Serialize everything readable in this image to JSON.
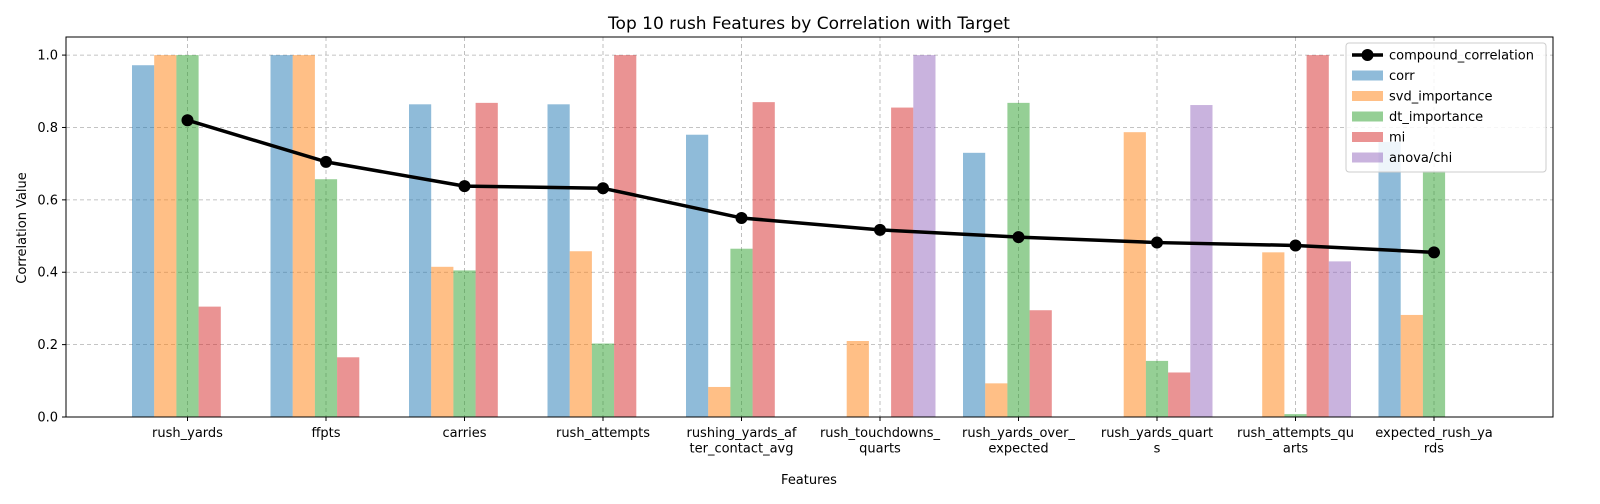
{
  "chart_data": {
    "type": "bar",
    "title": "Top 10 rush Features by Correlation with Target",
    "xlabel": "Features",
    "ylabel": "Correlation Value",
    "ylim": [
      0,
      1.05
    ],
    "yticks": [
      "0.0",
      "0.2",
      "0.4",
      "0.6",
      "0.8",
      "1.0"
    ],
    "grid": true,
    "legend_position": "top-right",
    "categories": [
      [
        "rush_yards"
      ],
      [
        "ffpts"
      ],
      [
        "carries"
      ],
      [
        "rush_attempts"
      ],
      [
        "rushing_yards_af",
        "ter_contact_avg"
      ],
      [
        "rush_touchdowns_",
        "quarts"
      ],
      [
        "rush_yards_over_",
        "expected"
      ],
      [
        "rush_yards_quart",
        "s"
      ],
      [
        "rush_attempts_qu",
        "arts"
      ],
      [
        "expected_rush_ya",
        "rds"
      ]
    ],
    "series": [
      {
        "name": "corr",
        "color": "#1f77b4",
        "values": [
          0.972,
          1.0,
          0.864,
          0.864,
          0.78,
          0,
          0.73,
          0,
          0,
          0.76
        ]
      },
      {
        "name": "svd_importance",
        "color": "#ff7f0e",
        "values": [
          1.0,
          1.0,
          0.415,
          0.458,
          0.083,
          0.21,
          0.093,
          0.787,
          0.455,
          0.282
        ]
      },
      {
        "name": "dt_importance",
        "color": "#2ca02c",
        "values": [
          1.0,
          0.657,
          0.405,
          0.203,
          0.465,
          0,
          0.868,
          0.155,
          0.008,
          0.68
        ]
      },
      {
        "name": "mi",
        "color": "#d62728",
        "values": [
          0.305,
          0.165,
          0.868,
          1.0,
          0.87,
          0.855,
          0.295,
          0.123,
          1.0,
          0
        ]
      },
      {
        "name": "anova/chi",
        "color": "#9467bd",
        "values": [
          0,
          0,
          0,
          0,
          0,
          1.0,
          0,
          0.862,
          0.43,
          0
        ]
      }
    ],
    "line_series": {
      "name": "compound_correlation",
      "color": "#000000",
      "values": [
        0.82,
        0.705,
        0.638,
        0.632,
        0.55,
        0.517,
        0.497,
        0.482,
        0.474,
        0.455
      ]
    }
  }
}
